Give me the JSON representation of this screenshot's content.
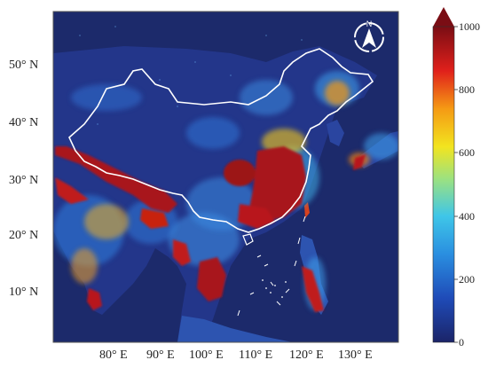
{
  "map": {
    "lat_labels": [
      "50° N",
      "40° N",
      "30° N",
      "20° N",
      "10° N"
    ],
    "lon_labels": [
      "80° E",
      "90° E",
      "100° E",
      "110° E",
      "120° E",
      "130° E"
    ],
    "north_arrow_label": "N",
    "colors": {
      "ocean": "#1c2a6b",
      "frame": "#555555",
      "border": "#ffffff"
    }
  },
  "colorbar": {
    "ticks": [
      "1000",
      "800",
      "600",
      "400",
      "200",
      "0"
    ],
    "min": 0,
    "max": 1000,
    "stops": [
      "#1b2468",
      "#1f5bd6",
      "#27b3e8",
      "#8fe08a",
      "#f4e61c",
      "#f59a14",
      "#e0201b",
      "#7a0d14"
    ]
  }
}
